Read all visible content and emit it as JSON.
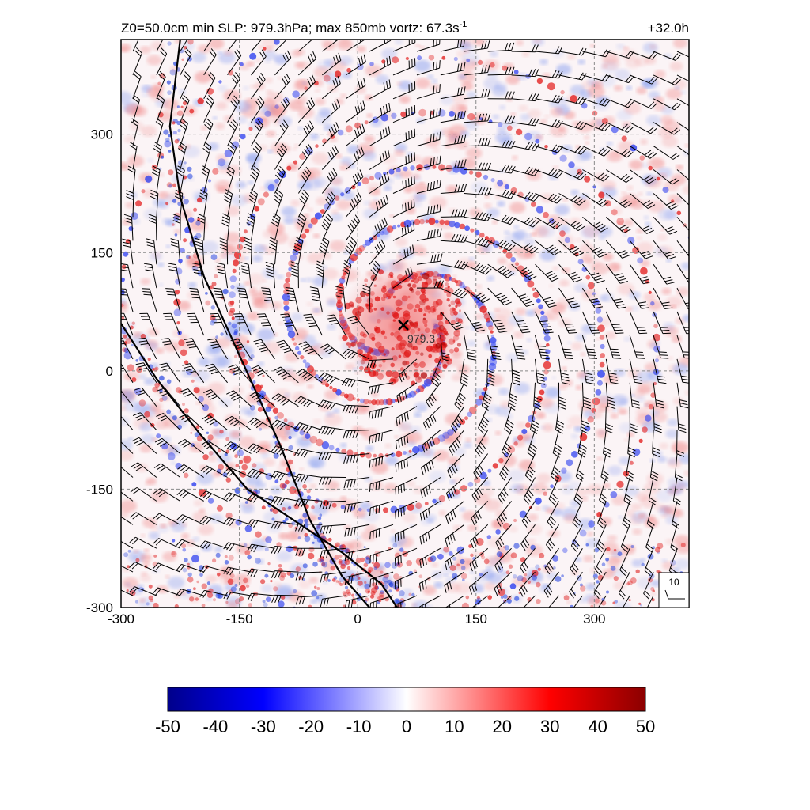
{
  "title": {
    "left_prefix": "Z0=50.0cm  min SLP: 979.3hPa; max 850mb vortz:  67.3s",
    "left_sup": "-1",
    "right": "+32.0h"
  },
  "chart_data": {
    "type": "heatmap",
    "description_fields": "vorticity shading with wind barbs",
    "xlim": [
      -300,
      420
    ],
    "ylim": [
      -300,
      420
    ],
    "x_ticks": [
      -300,
      -150,
      0,
      150,
      300
    ],
    "y_ticks": [
      -300,
      -150,
      0,
      150,
      300
    ],
    "grid": true,
    "colorbar": {
      "min": -50,
      "max": 50,
      "ticks": [
        "-50",
        "-40",
        "-30",
        "-20",
        "-10",
        "0",
        "10",
        "20",
        "30",
        "40",
        "50"
      ],
      "colors": [
        "#00008b",
        "#0000ff",
        "#ffffff",
        "#ff0000",
        "#8b0000"
      ]
    },
    "storm_center": {
      "x": 58,
      "y": 58,
      "label": "979.3"
    },
    "fronts": [
      {
        "name": "",
        "points": [
          [
            -225,
            420
          ],
          [
            -238,
            310
          ],
          [
            -225,
            220
          ],
          [
            -195,
            120
          ],
          [
            -150,
            20
          ],
          [
            -100,
            -90
          ],
          [
            -60,
            -190
          ],
          [
            -20,
            -260
          ],
          [
            15,
            -300
          ]
        ]
      },
      {
        "name": "",
        "points": [
          [
            -300,
            60
          ],
          [
            -255,
            -10
          ],
          [
            -200,
            -80
          ],
          [
            -140,
            -150
          ],
          [
            -80,
            -190
          ],
          [
            -20,
            -230
          ],
          [
            30,
            -270
          ],
          [
            50,
            -300
          ]
        ]
      }
    ],
    "wind_reference": {
      "label": "10",
      "speed": 10
    }
  }
}
